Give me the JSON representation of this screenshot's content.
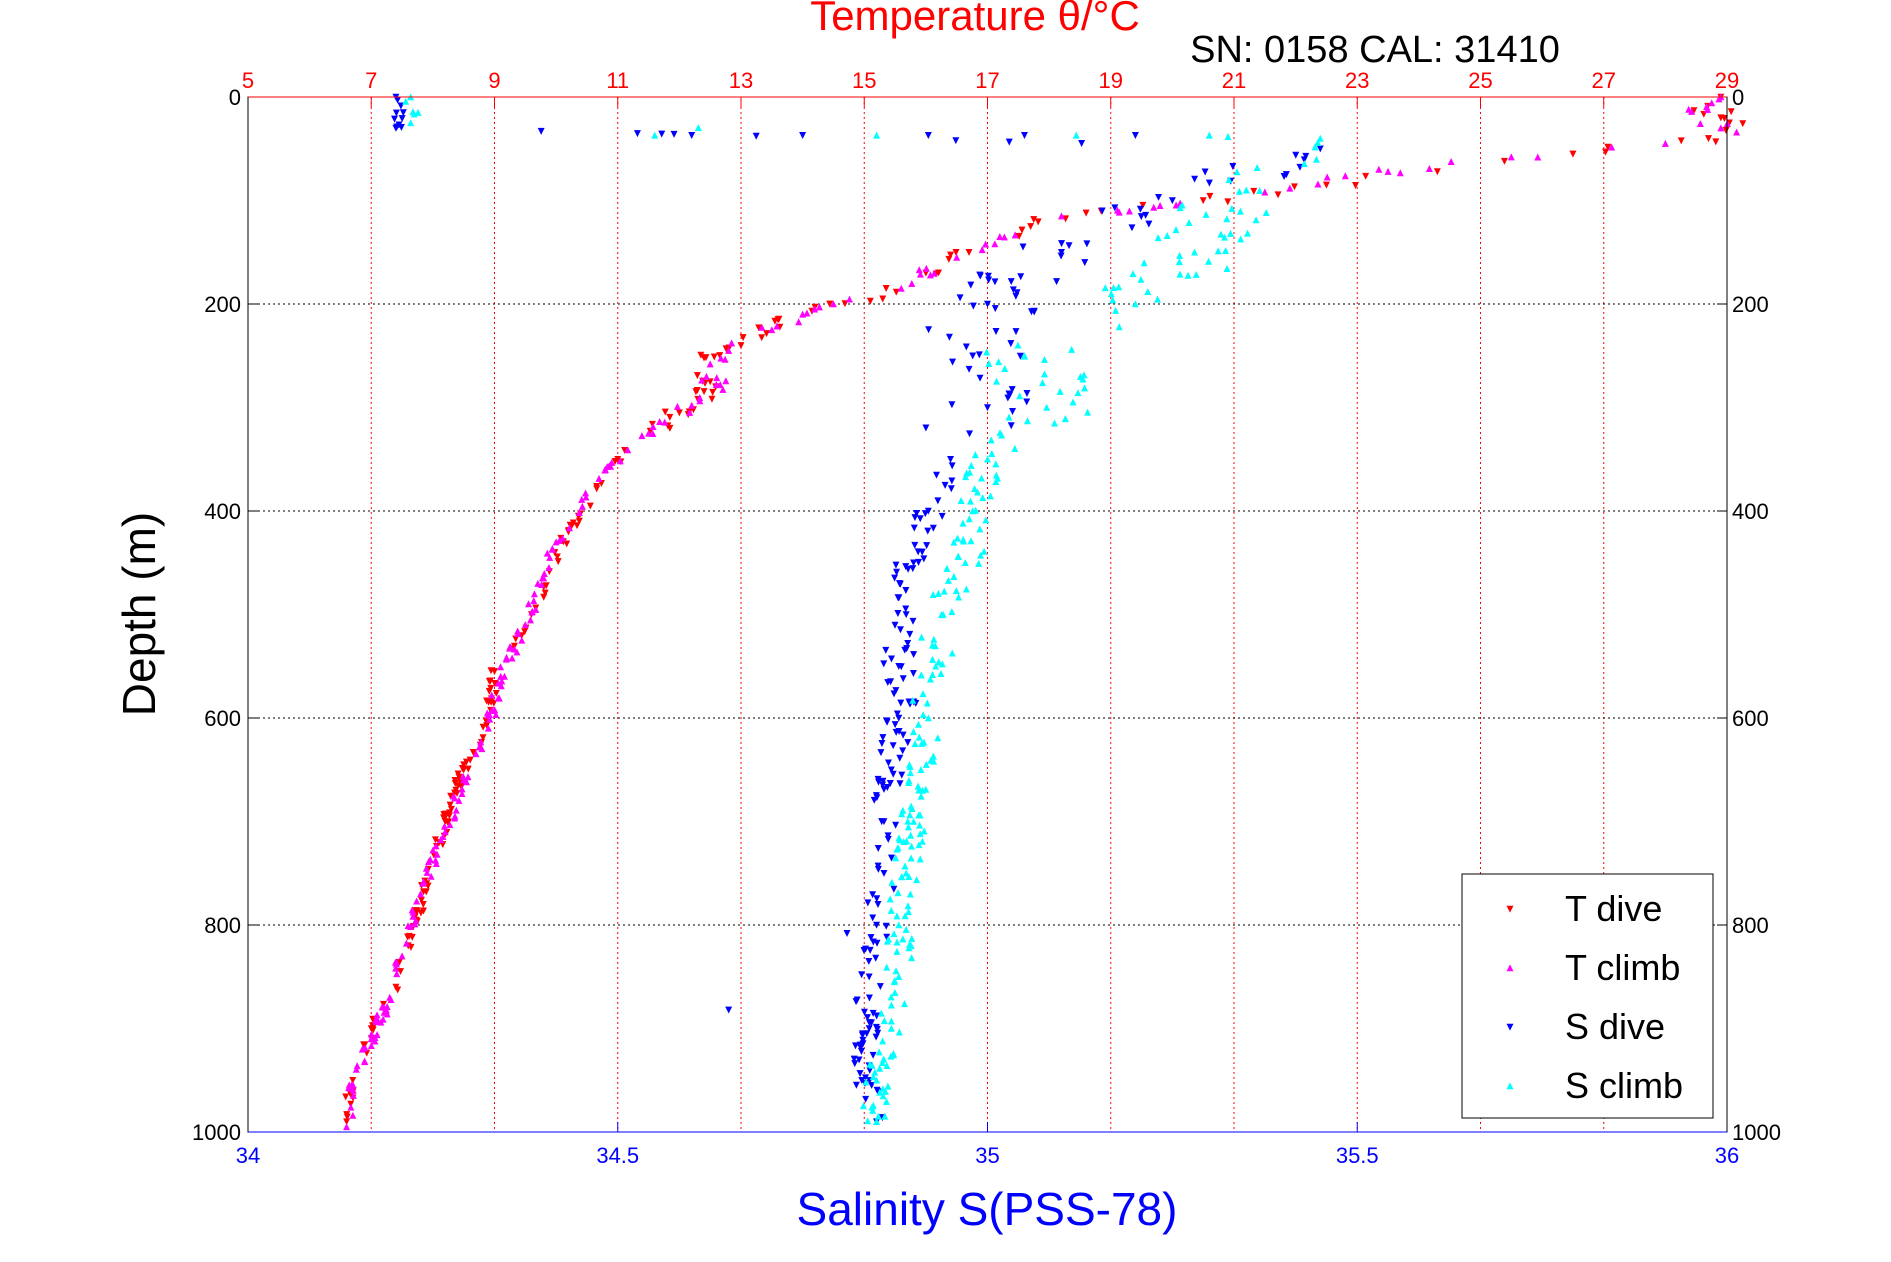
{
  "chart_data": {
    "type": "scatter",
    "title": "Temperature θ/°C",
    "subtitle": "SN: 0158  CAL: 31410",
    "xlabel": "Salinity S(PSS-78)",
    "ylabel": "Depth (m)",
    "top_axis": {
      "label": "Temperature θ/°C",
      "range": [
        5,
        29
      ],
      "ticks": [
        "5",
        "7",
        "9",
        "11",
        "13",
        "15",
        "17",
        "19",
        "21",
        "23",
        "25",
        "27",
        "29"
      ],
      "color": "#ff0000"
    },
    "bottom_axis": {
      "label": "Salinity S(PSS-78)",
      "range": [
        34,
        36
      ],
      "ticks": [
        "34",
        "34.5",
        "35",
        "35.5",
        "36"
      ],
      "color": "#0000ff"
    },
    "y_axis": {
      "range": [
        0,
        1000
      ],
      "reversed": true,
      "ticks": [
        "0",
        "200",
        "400",
        "600",
        "800",
        "1000"
      ]
    },
    "grid": true,
    "legend_position": "bottom-right",
    "series": [
      {
        "name": "T dive",
        "axis": "temperature",
        "color": "#ff0000",
        "marker": "triangle-down",
        "points": [
          [
            28.9,
            0
          ],
          [
            28.9,
            20
          ],
          [
            28.7,
            40
          ],
          [
            26.5,
            55
          ],
          [
            24.3,
            72
          ],
          [
            22.5,
            85
          ],
          [
            20.5,
            100
          ],
          [
            18.6,
            112
          ],
          [
            17.7,
            125
          ],
          [
            16.7,
            150
          ],
          [
            16.0,
            170
          ],
          [
            15.3,
            195
          ],
          [
            14.2,
            203
          ],
          [
            13.6,
            215
          ],
          [
            13.0,
            240
          ],
          [
            12.4,
            252
          ],
          [
            12.5,
            275
          ],
          [
            12.3,
            292
          ],
          [
            12.0,
            305
          ],
          [
            11.0,
            350
          ],
          [
            10.2,
            420
          ],
          [
            9.6,
            500
          ],
          [
            9.0,
            555
          ],
          [
            8.9,
            600
          ],
          [
            8.5,
            650
          ],
          [
            8.2,
            700
          ],
          [
            7.9,
            760
          ],
          [
            7.6,
            820
          ],
          [
            7.4,
            860
          ],
          [
            7.0,
            900
          ],
          [
            6.7,
            950
          ],
          [
            6.6,
            990
          ]
        ]
      },
      {
        "name": "T climb",
        "axis": "temperature",
        "color": "#ff00ff",
        "marker": "triangle-up",
        "points": [
          [
            28.9,
            0
          ],
          [
            28.9,
            30
          ],
          [
            28.0,
            45
          ],
          [
            25.5,
            58
          ],
          [
            23.5,
            72
          ],
          [
            21.5,
            92
          ],
          [
            19.8,
            105
          ],
          [
            18.2,
            115
          ],
          [
            17.2,
            135
          ],
          [
            16.5,
            155
          ],
          [
            15.6,
            185
          ],
          [
            14.5,
            200
          ],
          [
            14.0,
            210
          ],
          [
            13.5,
            225
          ],
          [
            12.8,
            245
          ],
          [
            12.5,
            258
          ],
          [
            12.6,
            278
          ],
          [
            12.2,
            298
          ],
          [
            11.5,
            325
          ],
          [
            10.8,
            360
          ],
          [
            10.0,
            430
          ],
          [
            9.5,
            510
          ],
          [
            9.1,
            560
          ],
          [
            8.9,
            610
          ],
          [
            8.5,
            660
          ],
          [
            8.2,
            710
          ],
          [
            7.8,
            770
          ],
          [
            7.5,
            830
          ],
          [
            7.3,
            870
          ],
          [
            7.0,
            910
          ],
          [
            6.7,
            955
          ],
          [
            6.6,
            995
          ]
        ]
      },
      {
        "name": "S dive",
        "axis": "salinity",
        "color": "#0000ff",
        "marker": "triangle-down",
        "points": [
          [
            34.2,
            0
          ],
          [
            34.21,
            15
          ],
          [
            34.2,
            30
          ],
          [
            35.45,
            50
          ],
          [
            35.25,
            100
          ],
          [
            35.1,
            150
          ],
          [
            35.0,
            200
          ],
          [
            34.98,
            250
          ],
          [
            35.0,
            300
          ],
          [
            34.95,
            350
          ],
          [
            34.92,
            400
          ],
          [
            34.9,
            450
          ],
          [
            34.89,
            500
          ],
          [
            34.88,
            550
          ],
          [
            34.88,
            600
          ],
          [
            34.87,
            650
          ],
          [
            34.86,
            700
          ],
          [
            34.86,
            750
          ],
          [
            34.85,
            800
          ],
          [
            34.84,
            850
          ],
          [
            34.84,
            900
          ],
          [
            34.83,
            950
          ],
          [
            34.85,
            990
          ]
        ]
      },
      {
        "name": "S climb",
        "axis": "salinity",
        "color": "#00ffff",
        "marker": "triangle-up",
        "points": [
          [
            34.22,
            0
          ],
          [
            34.23,
            15
          ],
          [
            34.22,
            25
          ],
          [
            35.45,
            40
          ],
          [
            35.35,
            90
          ],
          [
            35.28,
            150
          ],
          [
            35.2,
            200
          ],
          [
            35.05,
            250
          ],
          [
            35.08,
            300
          ],
          [
            35.0,
            350
          ],
          [
            34.98,
            400
          ],
          [
            34.97,
            450
          ],
          [
            34.94,
            500
          ],
          [
            34.93,
            550
          ],
          [
            34.92,
            600
          ],
          [
            34.91,
            650
          ],
          [
            34.9,
            700
          ],
          [
            34.89,
            750
          ],
          [
            34.88,
            800
          ],
          [
            34.88,
            850
          ],
          [
            34.87,
            900
          ],
          [
            34.85,
            950
          ],
          [
            34.85,
            990
          ]
        ]
      }
    ],
    "scatter_counts": {
      "T dive": 200,
      "T climb": 200,
      "S dive": 230,
      "S climb": 250
    }
  }
}
